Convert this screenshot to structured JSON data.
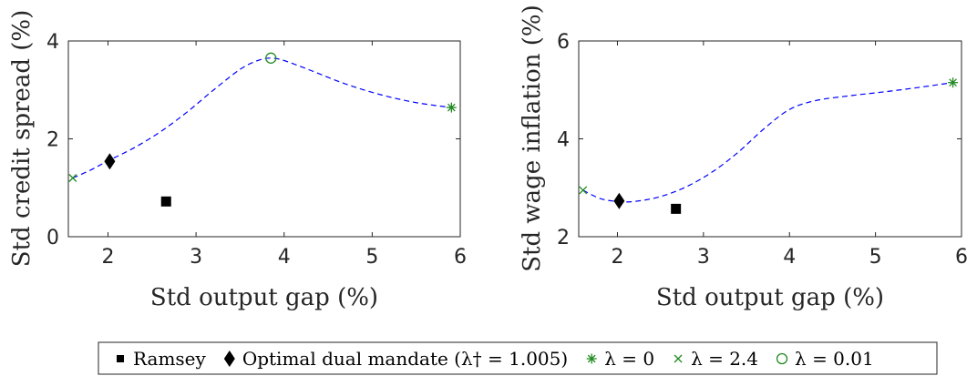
{
  "chart_data": [
    {
      "type": "line",
      "xlabel": "Std output gap (%)",
      "ylabel": "Std credit spread (%)",
      "xlim": [
        1.55,
        6
      ],
      "ylim": [
        0,
        4
      ],
      "xticks": [
        "2",
        "3",
        "4",
        "5",
        "6"
      ],
      "yticks": [
        "0",
        "2",
        "4"
      ],
      "grid": false,
      "series": [
        {
          "name": "frontier",
          "style": "dashed",
          "color": "#0000ff",
          "x": [
            1.6,
            1.8,
            2.0,
            2.3,
            2.6,
            2.9,
            3.2,
            3.5,
            3.7,
            3.85,
            4.0,
            4.3,
            4.7,
            5.1,
            5.5,
            5.9
          ],
          "y": [
            1.2,
            1.36,
            1.55,
            1.82,
            2.15,
            2.55,
            3.0,
            3.42,
            3.6,
            3.65,
            3.6,
            3.4,
            3.12,
            2.9,
            2.74,
            2.64
          ]
        },
        {
          "name": "Ramsey",
          "marker": "square",
          "x": [
            2.66
          ],
          "y": [
            0.72
          ]
        },
        {
          "name": "Optimal dual mandate (λ† = 1.005)",
          "marker": "diamond",
          "x": [
            2.02
          ],
          "y": [
            1.54
          ]
        },
        {
          "name": "λ = 0",
          "marker": "asterisk",
          "x": [
            5.9
          ],
          "y": [
            2.64
          ]
        },
        {
          "name": "λ = 2.4",
          "marker": "x",
          "x": [
            1.6
          ],
          "y": [
            1.2
          ]
        },
        {
          "name": "λ = 0.01",
          "marker": "circle",
          "x": [
            3.85
          ],
          "y": [
            3.65
          ]
        }
      ]
    },
    {
      "type": "line",
      "xlabel": "Std output gap (%)",
      "ylabel": "Std wage inflation (%)",
      "xlim": [
        1.55,
        6
      ],
      "ylim": [
        2,
        6
      ],
      "xticks": [
        "2",
        "3",
        "4",
        "5",
        "6"
      ],
      "yticks": [
        "2",
        "4",
        "6"
      ],
      "grid": false,
      "series": [
        {
          "name": "frontier",
          "style": "dashed",
          "color": "#0000ff",
          "x": [
            1.6,
            1.8,
            2.0,
            2.2,
            2.5,
            2.8,
            3.1,
            3.4,
            3.7,
            4.0,
            4.3,
            4.7,
            5.1,
            5.5,
            5.9
          ],
          "y": [
            2.95,
            2.78,
            2.72,
            2.72,
            2.82,
            3.02,
            3.32,
            3.72,
            4.2,
            4.6,
            4.78,
            4.88,
            4.96,
            5.05,
            5.15
          ]
        },
        {
          "name": "Ramsey",
          "marker": "square",
          "x": [
            2.68
          ],
          "y": [
            2.57
          ]
        },
        {
          "name": "Optimal dual mandate (λ† = 1.005)",
          "marker": "diamond",
          "x": [
            2.02
          ],
          "y": [
            2.73
          ]
        },
        {
          "name": "λ = 0",
          "marker": "asterisk",
          "x": [
            5.9
          ],
          "y": [
            5.15
          ]
        },
        {
          "name": "λ = 2.4",
          "marker": "x",
          "x": [
            1.6
          ],
          "y": [
            2.95
          ]
        }
      ]
    }
  ],
  "legend": {
    "placement": "bottom",
    "entries": [
      {
        "marker": "square",
        "color": "#000000",
        "label": "Ramsey"
      },
      {
        "marker": "diamond",
        "color": "#000000",
        "label": "Optimal dual mandate (λ† = 1.005)"
      },
      {
        "marker": "asterisk",
        "color": "#228b22",
        "label": "λ = 0"
      },
      {
        "marker": "x",
        "color": "#228b22",
        "label": "λ = 2.4"
      },
      {
        "marker": "circle",
        "color": "#228b22",
        "label": "λ = 0.01"
      }
    ]
  }
}
